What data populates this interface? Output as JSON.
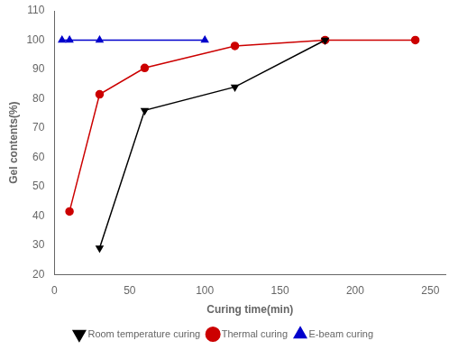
{
  "chart_data": {
    "type": "line",
    "xlabel": "Curing time(min)",
    "ylabel": "Gel contents(%)",
    "series": [
      {
        "name": "Room temperature curing",
        "color": "#000000",
        "marker": "triangle_down",
        "x": [
          30,
          60,
          120,
          180
        ],
        "values": [
          29,
          76,
          84,
          100
        ]
      },
      {
        "name": "Thermal curing",
        "color": "#cc0000",
        "marker": "circle",
        "x": [
          10,
          30,
          60,
          120,
          180,
          240
        ],
        "values": [
          41.5,
          81.5,
          90.5,
          98,
          100,
          100
        ]
      },
      {
        "name": "E-beam curing",
        "color": "#0000cc",
        "marker": "triangle_up",
        "x": [
          5,
          10,
          30,
          100
        ],
        "values": [
          100,
          100,
          100,
          100
        ]
      }
    ],
    "xlim": [
      0,
      260
    ],
    "ylim": [
      20,
      110
    ],
    "xticks": [
      0,
      50,
      100,
      150,
      200,
      250
    ],
    "yticks": [
      20,
      30,
      40,
      50,
      60,
      70,
      80,
      90,
      100,
      110
    ],
    "grid": false,
    "legend": "bottom"
  }
}
